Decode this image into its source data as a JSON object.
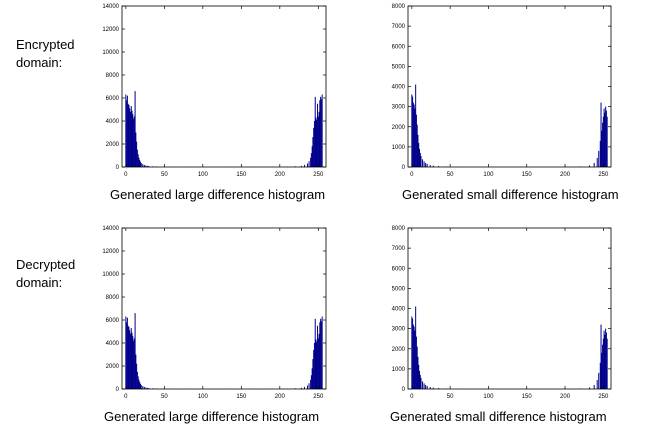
{
  "rows": [
    {
      "label_line1": "Encrypted",
      "label_line2": "domain:"
    },
    {
      "label_line1": "Decrypted",
      "label_line2": "domain:"
    }
  ],
  "captions": [
    "Generated large difference histogram",
    "Generated small difference histogram",
    "Generated large difference histogram",
    "Generated small difference histogram"
  ],
  "colors": {
    "bar": "#00008b",
    "axis": "#000000"
  },
  "chart_data": [
    {
      "type": "bar",
      "panel": "encrypted-large",
      "title": "",
      "xlabel": "",
      "ylabel": "",
      "xlim": [
        -5,
        260
      ],
      "ylim": [
        0,
        14000
      ],
      "x_ticks": [
        0,
        50,
        100,
        150,
        200,
        250
      ],
      "y_ticks": [
        0,
        2000,
        4000,
        6000,
        8000,
        10000,
        12000,
        14000
      ],
      "x": [
        0,
        1,
        2,
        3,
        4,
        5,
        6,
        7,
        8,
        9,
        10,
        11,
        12,
        13,
        14,
        15,
        16,
        17,
        18,
        19,
        20,
        22,
        24,
        26,
        28,
        30,
        35,
        40,
        50,
        60,
        80,
        100,
        130,
        160,
        190,
        210,
        220,
        228,
        232,
        236,
        238,
        240,
        241,
        242,
        243,
        244,
        245,
        246,
        247,
        248,
        249,
        250,
        251,
        252,
        253,
        254,
        255
      ],
      "values": [
        6300,
        5800,
        6200,
        5500,
        5400,
        5100,
        4800,
        5300,
        4900,
        4600,
        4200,
        4400,
        6600,
        3000,
        2200,
        1500,
        1100,
        800,
        600,
        450,
        350,
        250,
        180,
        130,
        100,
        80,
        60,
        50,
        40,
        30,
        25,
        20,
        20,
        20,
        25,
        35,
        60,
        100,
        180,
        300,
        500,
        800,
        1200,
        1800,
        2600,
        3400,
        4000,
        6100,
        4300,
        4100,
        5500,
        4400,
        4800,
        5800,
        6100,
        5900,
        6300
      ]
    },
    {
      "type": "bar",
      "panel": "encrypted-small",
      "title": "",
      "xlabel": "",
      "ylabel": "",
      "xlim": [
        -5,
        260
      ],
      "ylim": [
        0,
        8000
      ],
      "x_ticks": [
        0,
        50,
        100,
        150,
        200,
        250
      ],
      "y_ticks": [
        0,
        1000,
        2000,
        3000,
        4000,
        5000,
        6000,
        7000,
        8000
      ],
      "x": [
        0,
        1,
        2,
        3,
        4,
        5,
        6,
        7,
        8,
        9,
        10,
        11,
        12,
        14,
        16,
        18,
        20,
        24,
        28,
        35,
        45,
        60,
        100,
        150,
        200,
        220,
        232,
        238,
        242,
        244,
        246,
        247,
        248,
        249,
        250,
        251,
        252,
        253,
        254,
        255
      ],
      "values": [
        3600,
        3500,
        3200,
        3100,
        2900,
        4100,
        2600,
        2100,
        1600,
        1200,
        900,
        700,
        550,
        380,
        280,
        200,
        150,
        100,
        70,
        45,
        30,
        20,
        12,
        10,
        15,
        30,
        80,
        200,
        450,
        800,
        1300,
        3200,
        1800,
        2200,
        2500,
        2900,
        2700,
        3000,
        2800,
        2500
      ]
    },
    {
      "type": "bar",
      "panel": "decrypted-large",
      "title": "",
      "xlabel": "",
      "ylabel": "",
      "xlim": [
        -5,
        260
      ],
      "ylim": [
        0,
        14000
      ],
      "x_ticks": [
        0,
        50,
        100,
        150,
        200,
        250
      ],
      "y_ticks": [
        0,
        2000,
        4000,
        6000,
        8000,
        10000,
        12000,
        14000
      ],
      "x": [
        0,
        1,
        2,
        3,
        4,
        5,
        6,
        7,
        8,
        9,
        10,
        11,
        12,
        13,
        14,
        15,
        16,
        17,
        18,
        19,
        20,
        22,
        24,
        26,
        28,
        30,
        35,
        40,
        50,
        60,
        80,
        100,
        130,
        160,
        190,
        210,
        220,
        228,
        232,
        236,
        238,
        240,
        241,
        242,
        243,
        244,
        245,
        246,
        247,
        248,
        249,
        250,
        251,
        252,
        253,
        254,
        255
      ],
      "values": [
        6300,
        5800,
        6200,
        5500,
        5400,
        5100,
        4800,
        5300,
        4900,
        4600,
        4200,
        4400,
        6600,
        3000,
        2200,
        1500,
        1100,
        800,
        600,
        450,
        350,
        250,
        180,
        130,
        100,
        80,
        60,
        50,
        40,
        30,
        25,
        20,
        20,
        20,
        25,
        35,
        60,
        100,
        180,
        300,
        500,
        800,
        1200,
        1800,
        2600,
        3400,
        4000,
        6100,
        4300,
        4100,
        5500,
        4400,
        4800,
        5800,
        6100,
        5900,
        6300
      ]
    },
    {
      "type": "bar",
      "panel": "decrypted-small",
      "title": "",
      "xlabel": "",
      "ylabel": "",
      "xlim": [
        -5,
        260
      ],
      "ylim": [
        0,
        8000
      ],
      "x_ticks": [
        0,
        50,
        100,
        150,
        200,
        250
      ],
      "y_ticks": [
        0,
        1000,
        2000,
        3000,
        4000,
        5000,
        6000,
        7000,
        8000
      ],
      "x": [
        0,
        1,
        2,
        3,
        4,
        5,
        6,
        7,
        8,
        9,
        10,
        11,
        12,
        14,
        16,
        18,
        20,
        24,
        28,
        35,
        45,
        60,
        100,
        150,
        200,
        220,
        232,
        238,
        242,
        244,
        246,
        247,
        248,
        249,
        250,
        251,
        252,
        253,
        254,
        255
      ],
      "values": [
        3600,
        3500,
        3200,
        3100,
        2900,
        4100,
        2600,
        2100,
        1600,
        1200,
        900,
        700,
        550,
        380,
        280,
        200,
        150,
        100,
        70,
        45,
        30,
        20,
        12,
        10,
        15,
        30,
        80,
        200,
        450,
        800,
        1300,
        3200,
        1800,
        2200,
        2500,
        2900,
        2700,
        3000,
        2800,
        2500
      ]
    }
  ]
}
